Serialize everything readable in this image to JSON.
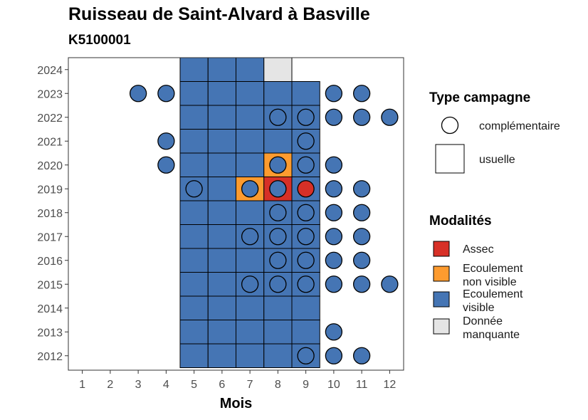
{
  "title": "Ruisseau de Saint-Alvard à Basville",
  "subtitle": "K5100001",
  "chart_data": {
    "type": "heatmap",
    "xlabel": "Mois",
    "ylabel": "",
    "x_ticks": [
      1,
      2,
      3,
      4,
      5,
      6,
      7,
      8,
      9,
      10,
      11,
      12
    ],
    "y_ticks": [
      2012,
      2013,
      2014,
      2015,
      2016,
      2017,
      2018,
      2019,
      2020,
      2021,
      2022,
      2023,
      2024
    ],
    "grid": false,
    "modalities": {
      "A": {
        "label": "Assec",
        "color": "#d73027"
      },
      "N": {
        "label": "Ecoulement non visible",
        "color": "#fd9b2f"
      },
      "V": {
        "label": "Ecoulement visible",
        "color": "#4575b4"
      },
      "M": {
        "label": "Donnée manquante",
        "color": "#e5e5e5"
      }
    },
    "usuelle": [
      {
        "year": 2024,
        "values": {
          "5": "V",
          "6": "V",
          "7": "V",
          "8": "M"
        }
      },
      {
        "year": 2023,
        "values": {
          "5": "V",
          "6": "V",
          "7": "V",
          "8": "V",
          "9": "V"
        }
      },
      {
        "year": 2022,
        "values": {
          "5": "V",
          "6": "V",
          "7": "V",
          "8": "V",
          "9": "V"
        }
      },
      {
        "year": 2021,
        "values": {
          "5": "V",
          "6": "V",
          "7": "V",
          "8": "V",
          "9": "V"
        }
      },
      {
        "year": 2020,
        "values": {
          "5": "V",
          "6": "V",
          "7": "V",
          "8": "N",
          "9": "V"
        }
      },
      {
        "year": 2019,
        "values": {
          "5": "V",
          "6": "V",
          "7": "N",
          "8": "A",
          "9": "V"
        }
      },
      {
        "year": 2018,
        "values": {
          "5": "V",
          "6": "V",
          "7": "V",
          "8": "V",
          "9": "V"
        }
      },
      {
        "year": 2017,
        "values": {
          "5": "V",
          "6": "V",
          "7": "V",
          "8": "V",
          "9": "V"
        }
      },
      {
        "year": 2016,
        "values": {
          "5": "V",
          "6": "V",
          "7": "V",
          "8": "V",
          "9": "V"
        }
      },
      {
        "year": 2015,
        "values": {
          "5": "V",
          "6": "V",
          "7": "V",
          "8": "V",
          "9": "V"
        }
      },
      {
        "year": 2014,
        "values": {
          "5": "V",
          "6": "V",
          "7": "V",
          "8": "V",
          "9": "V"
        }
      },
      {
        "year": 2013,
        "values": {
          "5": "V",
          "6": "V",
          "7": "V",
          "8": "V",
          "9": "V"
        }
      },
      {
        "year": 2012,
        "values": {
          "5": "V",
          "6": "V",
          "7": "V",
          "8": "V",
          "9": "V"
        }
      }
    ],
    "complementaire": [
      {
        "year": 2023,
        "values": {
          "3": "V",
          "4": "V",
          "10": "V",
          "11": "V"
        }
      },
      {
        "year": 2022,
        "values": {
          "8": "V",
          "9": "V",
          "10": "V",
          "11": "V",
          "12": "V"
        }
      },
      {
        "year": 2021,
        "values": {
          "4": "V",
          "9": "V"
        }
      },
      {
        "year": 2020,
        "values": {
          "4": "V",
          "8": "V",
          "9": "V",
          "10": "V"
        }
      },
      {
        "year": 2019,
        "values": {
          "5": "V",
          "7": "V",
          "8": "V",
          "9": "A",
          "10": "V",
          "11": "V"
        }
      },
      {
        "year": 2018,
        "values": {
          "8": "V",
          "9": "V",
          "10": "V",
          "11": "V"
        }
      },
      {
        "year": 2017,
        "values": {
          "7": "V",
          "8": "V",
          "9": "V",
          "10": "V",
          "11": "V"
        }
      },
      {
        "year": 2016,
        "values": {
          "8": "V",
          "9": "V",
          "10": "V",
          "11": "V"
        }
      },
      {
        "year": 2015,
        "values": {
          "7": "V",
          "8": "V",
          "9": "V",
          "10": "V",
          "11": "V",
          "12": "V"
        }
      },
      {
        "year": 2013,
        "values": {
          "10": "V"
        }
      },
      {
        "year": 2012,
        "values": {
          "9": "V",
          "10": "V",
          "11": "V"
        }
      }
    ]
  },
  "legend": {
    "type_title": "Type campagne",
    "type_items": [
      {
        "label": "complémentaire",
        "shape": "circle"
      },
      {
        "label": "usuelle",
        "shape": "square"
      }
    ],
    "modal_title": "Modalités",
    "modal_items": [
      {
        "line1": "Assec",
        "line2": "",
        "key": "A"
      },
      {
        "line1": "Ecoulement",
        "line2": "non visible",
        "key": "N"
      },
      {
        "line1": "Ecoulement",
        "line2": "visible",
        "key": "V"
      },
      {
        "line1": "Donnée",
        "line2": "manquante",
        "key": "M"
      }
    ]
  }
}
